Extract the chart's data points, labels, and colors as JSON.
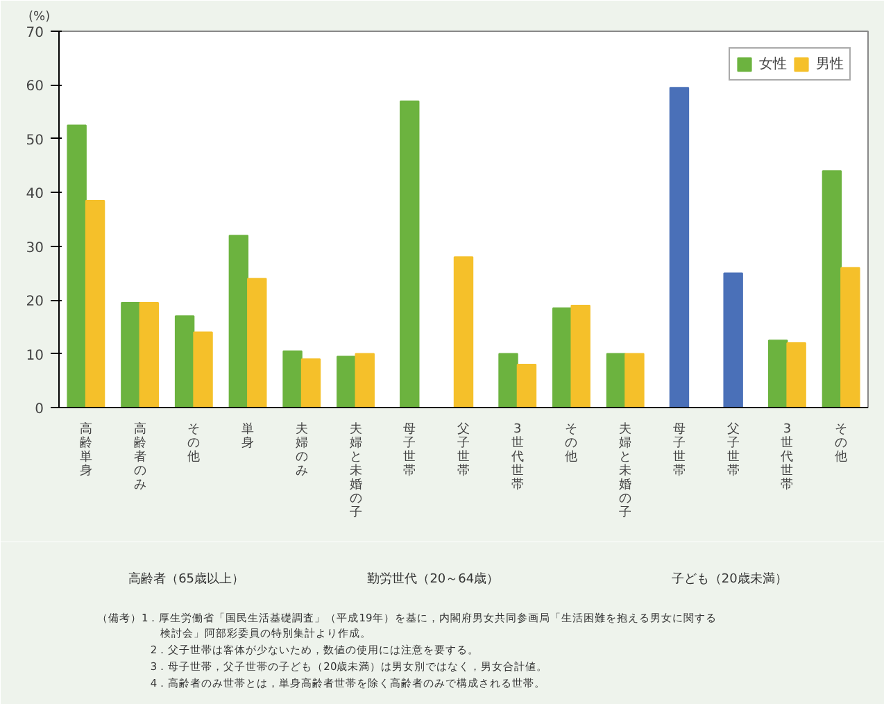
{
  "chart_data": {
    "type": "bar",
    "ylabel": "(%)",
    "categories": [
      "高齢単身",
      "高齢者のみ",
      "その他",
      "単身",
      "夫婦のみ",
      "夫婦と未婚の子",
      "母子世帯",
      "父子世帯",
      "3世代世帯",
      "その他",
      "夫婦と未婚の子",
      "母子世帯",
      "父子世帯",
      "3世代世帯",
      "その他"
    ],
    "series": [
      {
        "name": "女性",
        "color": "#6cb33f",
        "values": [
          52.5,
          19.5,
          17,
          32,
          10.5,
          9.5,
          57,
          null,
          10,
          18.5,
          10,
          null,
          null,
          12.5,
          44
        ]
      },
      {
        "name": "男性",
        "color": "#f5c02a",
        "values": [
          38.5,
          19.5,
          14,
          24,
          9,
          10,
          null,
          28,
          8,
          19,
          10,
          null,
          null,
          12,
          26
        ]
      },
      {
        "color": "#4a70b8",
        "values": [
          null,
          null,
          null,
          null,
          null,
          null,
          null,
          null,
          null,
          null,
          null,
          59.5,
          25,
          null,
          null
        ]
      }
    ],
    "ylim": [
      0,
      70
    ],
    "yticks": [
      0,
      10,
      20,
      30,
      40,
      50,
      60,
      70
    ],
    "grid": false,
    "legend": "top right",
    "annotations": [
      "高齢者（65歳以上）",
      "勤労世代（20～64歳）",
      "子ども（20歳未満）",
      "（備考）1．厚生労働省「国民生活基礎調査」（平成19年）を基に，内閣府男女共同参画局「生活困難を抱える男女に関する検討会」阿部彩委員の特別集計より作成。",
      "2．父子世帯は客体が少ないため，数値の使用には注意を要する。",
      "3．母子世帯，父子世帯の子ども（20歳未満）は男女別ではなく，男女合計値。",
      "4．高齢者のみ世帯とは，単身高齢者世帯を除く高齢者のみで構成される世帯。"
    ]
  }
}
